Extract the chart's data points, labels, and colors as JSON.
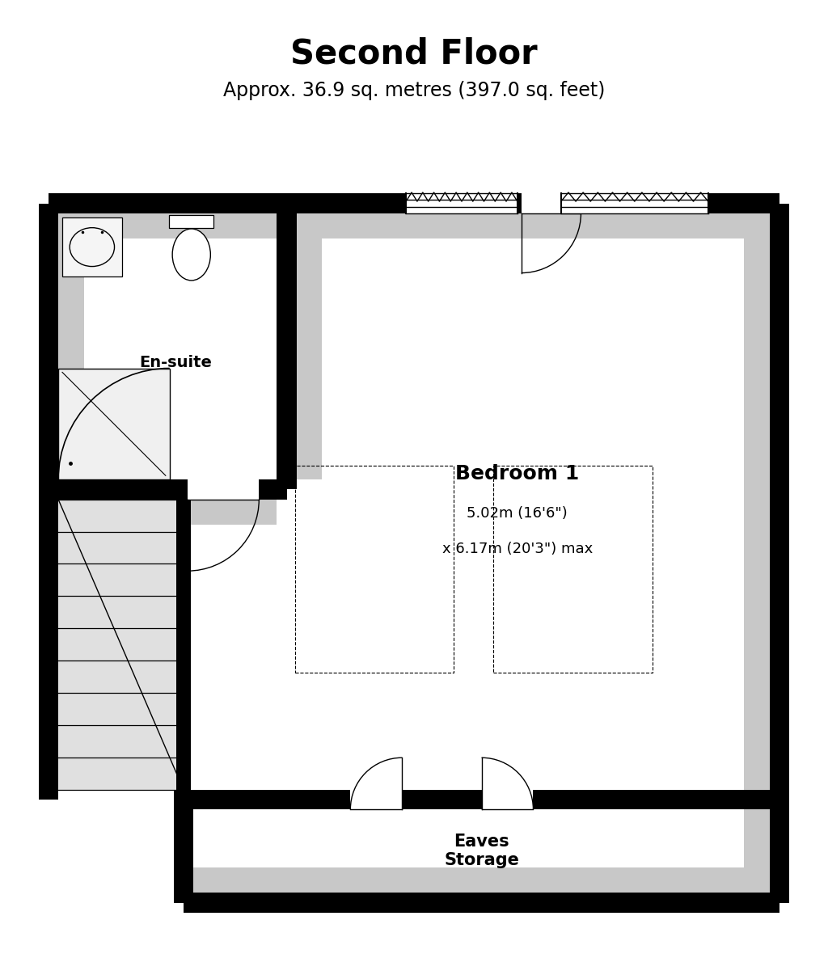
{
  "title": "Second Floor",
  "subtitle": "Approx. 36.9 sq. metres (397.0 sq. feet)",
  "bg_color": "#ffffff",
  "wall_color": "#000000",
  "shadow_color": "#c8c8c8",
  "wall_thickness": 0.25,
  "bedroom1_label": "Bedroom 1",
  "bedroom1_dim1": "5.02m (16'6\")",
  "bedroom1_dim2": "x 6.17m (20'3\") max",
  "ensuite_label": "En-suite",
  "eaves_label": "Eaves\nStorage"
}
